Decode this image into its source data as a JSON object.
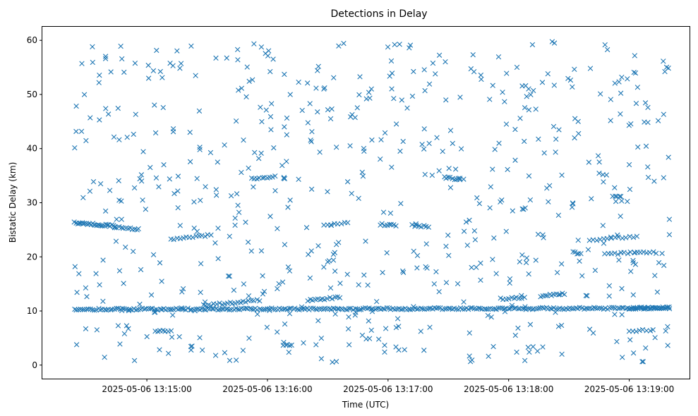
{
  "chart_data": {
    "type": "scatter",
    "title": "Detections in Delay",
    "xlabel": "Time (UTC)",
    "ylabel": "Bistatic Delay (km)",
    "marker": "x",
    "color": "#1f77b4",
    "grid": false,
    "xlim": [
      "2025-05-06 13:14:08",
      "2025-05-06 13:19:30"
    ],
    "ylim": [
      -2.5,
      62.5
    ],
    "x_ticks": [
      "2025-05-06 13:15:00",
      "2025-05-06 13:16:00",
      "2025-05-06 13:17:00",
      "2025-05-06 13:18:00",
      "2025-05-06 13:19:00"
    ],
    "y_ticks": [
      0,
      10,
      20,
      30,
      40,
      50,
      60
    ],
    "x_start": "2025-05-06 13:14:24",
    "x_end": "2025-05-06 13:19:20",
    "tracks": [
      {
        "y_start": 10.3,
        "y_end": 10.5,
        "n": 300
      },
      {
        "y_start": 26.3,
        "y_end": 25.7,
        "x_from": "2025-05-06 13:14:24",
        "x_to": "2025-05-06 13:14:44",
        "n": 28
      },
      {
        "y_start": 25.5,
        "y_end": 25.1,
        "x_from": "2025-05-06 13:14:44",
        "x_to": "2025-05-06 13:14:56",
        "n": 12
      },
      {
        "y_start": 23.3,
        "y_end": 24.0,
        "x_from": "2025-05-06 13:15:12",
        "x_to": "2025-05-06 13:15:32",
        "n": 14
      },
      {
        "y_start": 11.0,
        "y_end": 12.0,
        "x_from": "2025-05-06 13:15:28",
        "x_to": "2025-05-06 13:15:56",
        "n": 22
      },
      {
        "y_start": 12.0,
        "y_end": 12.5,
        "x_from": "2025-05-06 13:16:20",
        "x_to": "2025-05-06 13:16:36",
        "n": 14
      },
      {
        "y_start": 34.5,
        "y_end": 34.8,
        "x_from": "2025-05-06 13:15:52",
        "x_to": "2025-05-06 13:16:04",
        "n": 10
      },
      {
        "y_start": 26.0,
        "y_end": 26.2,
        "x_from": "2025-05-06 13:16:28",
        "x_to": "2025-05-06 13:16:40",
        "n": 8
      },
      {
        "y_start": 26.0,
        "y_end": 25.8,
        "x_from": "2025-05-06 13:16:56",
        "x_to": "2025-05-06 13:17:04",
        "n": 8
      },
      {
        "y_start": 25.8,
        "y_end": 25.6,
        "x_from": "2025-05-06 13:17:12",
        "x_to": "2025-05-06 13:17:20",
        "n": 8
      },
      {
        "y_start": 34.7,
        "y_end": 34.3,
        "x_from": "2025-05-06 13:17:28",
        "x_to": "2025-05-06 13:17:36",
        "n": 9
      },
      {
        "y_start": 12.2,
        "y_end": 12.5,
        "x_from": "2025-05-06 13:17:56",
        "x_to": "2025-05-06 13:18:08",
        "n": 10
      },
      {
        "y_start": 12.8,
        "y_end": 13.2,
        "x_from": "2025-05-06 13:18:16",
        "x_to": "2025-05-06 13:18:28",
        "n": 12
      },
      {
        "y_start": 20.8,
        "y_end": 20.6,
        "x_from": "2025-05-06 13:18:32",
        "x_to": "2025-05-06 13:18:36",
        "n": 5
      },
      {
        "y_start": 23.0,
        "y_end": 23.8,
        "x_from": "2025-05-06 13:18:40",
        "x_to": "2025-05-06 13:19:04",
        "n": 14
      },
      {
        "y_start": 20.5,
        "y_end": 20.9,
        "x_from": "2025-05-06 13:18:48",
        "x_to": "2025-05-06 13:19:12",
        "n": 16
      },
      {
        "y_start": 31.3,
        "y_end": 31.1,
        "x_from": "2025-05-06 13:18:52",
        "x_to": "2025-05-06 13:18:56",
        "n": 5
      },
      {
        "y_start": 10.5,
        "y_end": 10.6,
        "x_from": "2025-05-06 13:19:00",
        "x_to": "2025-05-06 13:19:20",
        "n": 20
      },
      {
        "y_start": 6.3,
        "y_end": 6.5,
        "x_from": "2025-05-06 13:19:00",
        "x_to": "2025-05-06 13:19:12",
        "n": 8
      },
      {
        "y_start": 6.2,
        "y_end": 6.4,
        "x_from": "2025-05-06 13:15:04",
        "x_to": "2025-05-06 13:15:12",
        "n": 7
      },
      {
        "y_start": 3.7,
        "y_end": 3.8,
        "x_from": "2025-05-06 13:16:08",
        "x_to": "2025-05-06 13:16:12",
        "n": 5
      }
    ],
    "scatter_y_range": [
      0.5,
      60
    ],
    "scatter_count": 620
  }
}
